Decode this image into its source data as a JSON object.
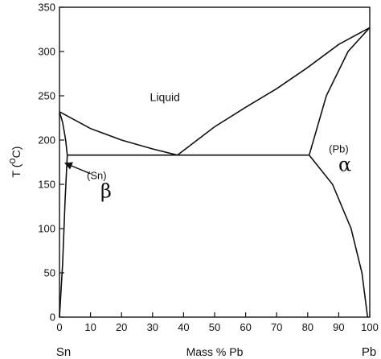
{
  "chart_data": {
    "type": "line",
    "title": "",
    "xlabel": "Mass % Pb",
    "ylabel_main": "T (",
    "ylabel_sup": "o",
    "ylabel_unit": "C)",
    "xlim": [
      0,
      100
    ],
    "ylim": [
      0,
      350
    ],
    "x_ticks": [
      0,
      10,
      20,
      30,
      40,
      50,
      60,
      70,
      80,
      90,
      100
    ],
    "y_ticks": [
      0,
      50,
      100,
      150,
      200,
      250,
      300,
      350
    ],
    "grid": false,
    "end_labels": {
      "left": "Sn",
      "right": "Pb"
    },
    "series": [
      {
        "x": [
          0,
          10,
          20,
          30,
          38
        ],
        "y": [
          232,
          213,
          200,
          190,
          183
        ]
      },
      {
        "x": [
          38,
          50,
          60,
          70,
          80,
          90,
          100
        ],
        "y": [
          183,
          215,
          237,
          258,
          282,
          308,
          327
        ]
      },
      {
        "x": [
          2.5,
          80.5
        ],
        "y": [
          183,
          183
        ]
      },
      {
        "x": [
          0,
          1,
          2,
          2.5
        ],
        "y": [
          232,
          220,
          200,
          183
        ]
      },
      {
        "x": [
          0,
          1,
          1.8,
          2.5
        ],
        "y": [
          0,
          60,
          130,
          183
        ]
      },
      {
        "x": [
          80.5,
          86,
          93,
          100
        ],
        "y": [
          183,
          250,
          300,
          327
        ]
      },
      {
        "x": [
          80.5,
          88,
          94,
          97.5,
          99.3
        ],
        "y": [
          183,
          150,
          100,
          50,
          0
        ]
      }
    ],
    "annotations": [
      {
        "text": "Liquid",
        "x": 34,
        "y": 244,
        "style": "lab"
      },
      {
        "text": "(Sn)",
        "x": 12,
        "y": 156,
        "style": "sup"
      },
      {
        "text": "β",
        "x": 15,
        "y": 135,
        "style": "greek"
      },
      {
        "text": "(Pb)",
        "x": 90,
        "y": 186,
        "style": "sup"
      },
      {
        "text": "α",
        "x": 92,
        "y": 165,
        "style": "greek"
      }
    ],
    "arrow": {
      "from": [
        10,
        162
      ],
      "to": [
        1.8,
        174
      ]
    }
  }
}
